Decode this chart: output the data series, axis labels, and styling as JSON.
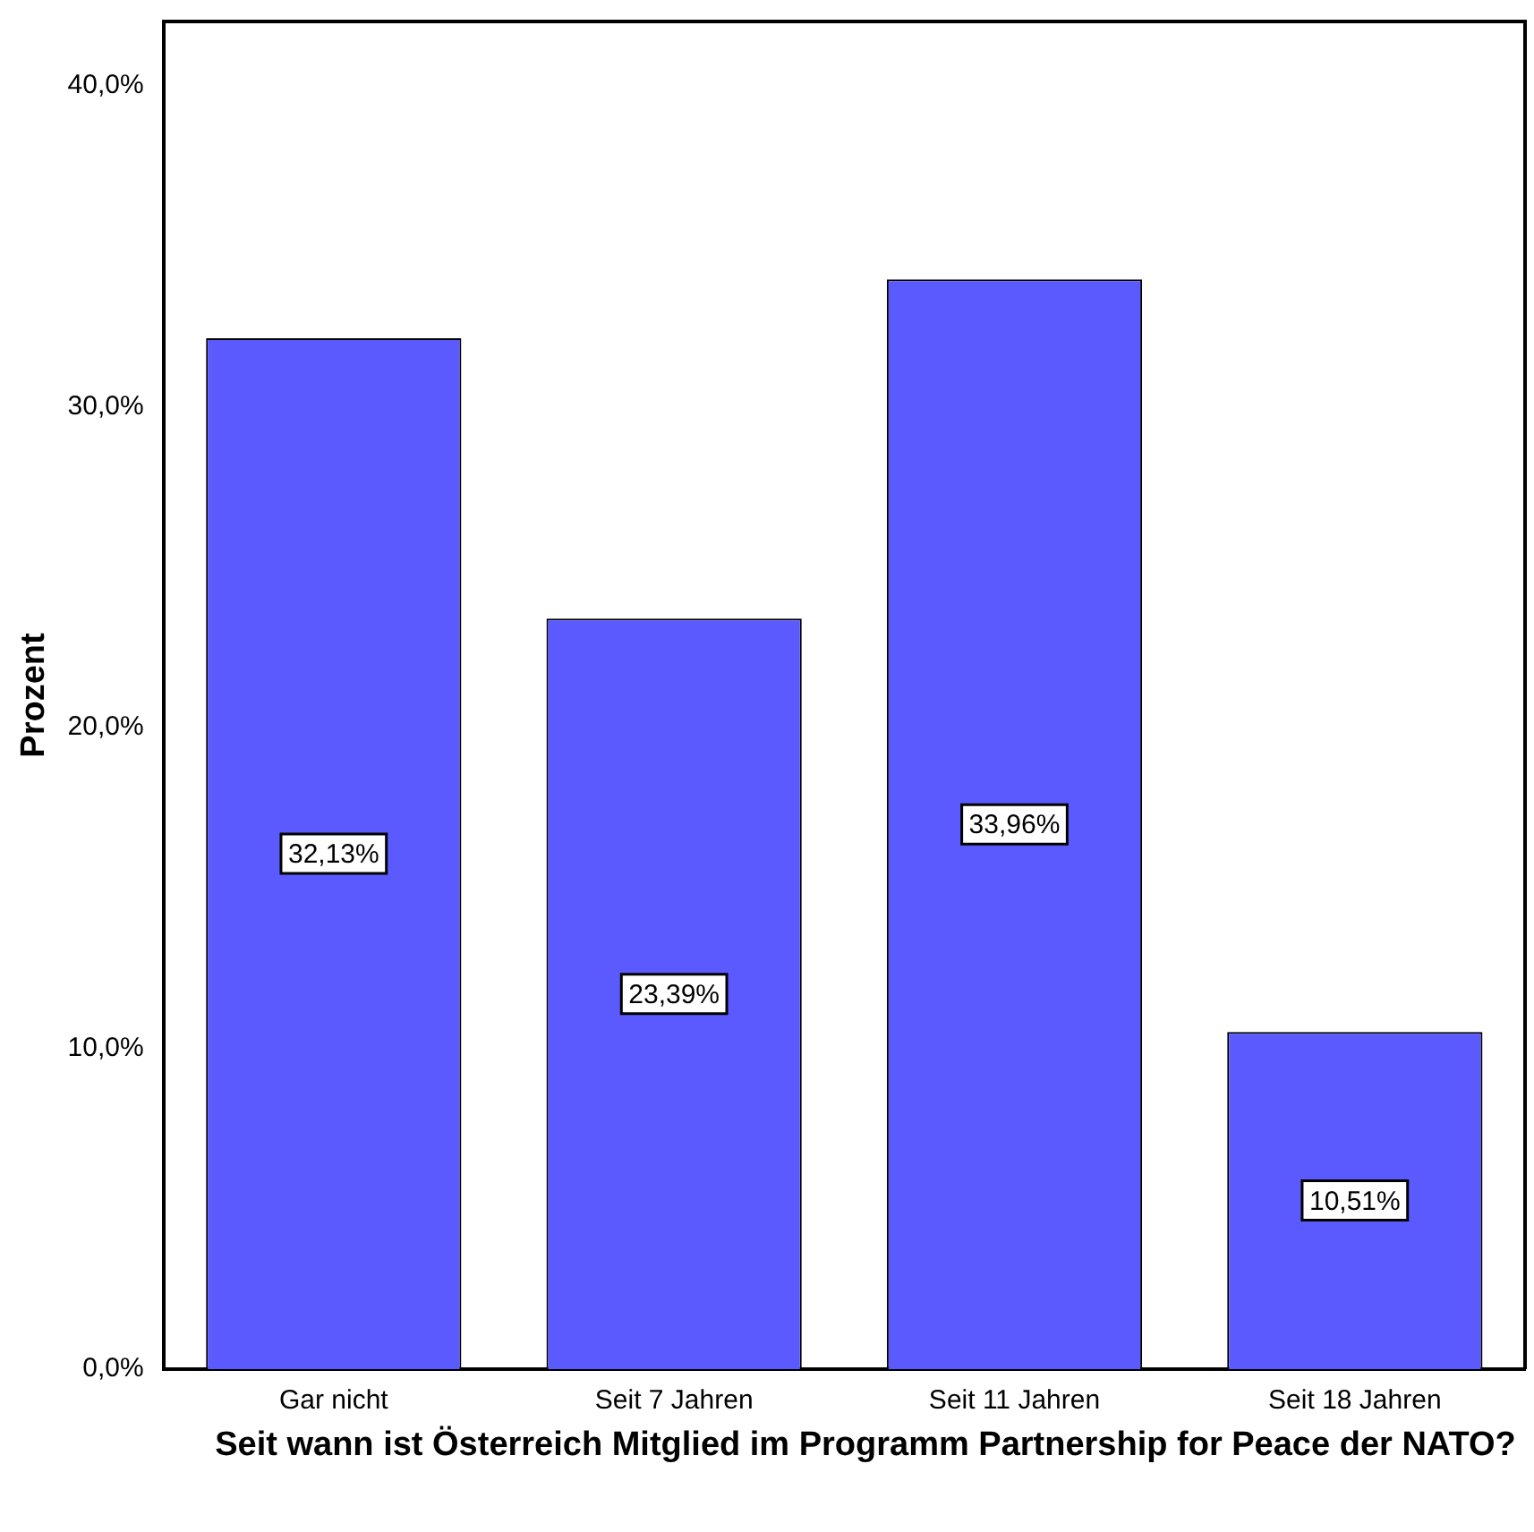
{
  "chart_data": {
    "type": "bar",
    "xlabel": "Seit wann ist Österreich Mitglied im Programm Partnership for Peace der NATO?",
    "ylabel": "Prozent",
    "categories": [
      "Gar nicht",
      "Seit 7 Jahren",
      "Seit 11 Jahren",
      "Seit 18 Jahren"
    ],
    "values": [
      32.13,
      23.39,
      33.96,
      10.51
    ],
    "value_labels": [
      "32,13%",
      "23,39%",
      "33,96%",
      "10,51%"
    ],
    "color": "#5a5aff",
    "ylim": [
      0,
      42
    ],
    "yticks": [
      {
        "value": 0,
        "label": "0,0%"
      },
      {
        "value": 10,
        "label": "10,0%"
      },
      {
        "value": 20,
        "label": "20,0%"
      },
      {
        "value": 30,
        "label": "30,0%"
      },
      {
        "value": 40,
        "label": "40,0%"
      }
    ],
    "grid": false,
    "legend": false
  }
}
